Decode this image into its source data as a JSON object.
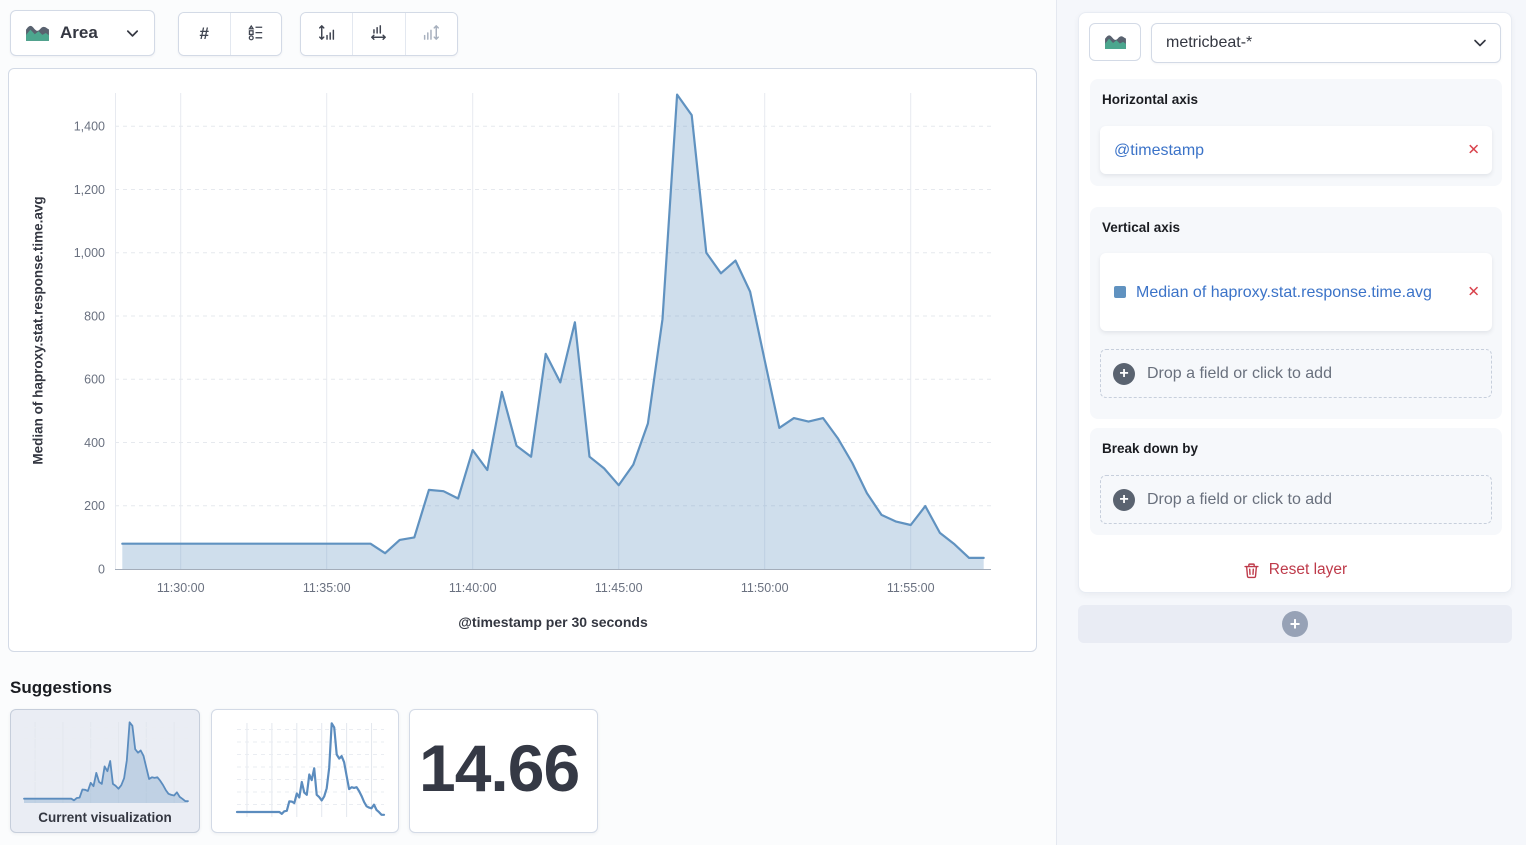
{
  "toolbar": {
    "chart_type_label": "Area",
    "value_labels_label": "#",
    "icons": [
      "area-chart-icon",
      "hash-icon",
      "legend-icon",
      "axis-left-icon",
      "axis-bottom-icon",
      "axis-right-icon"
    ]
  },
  "chart_data": {
    "type": "area",
    "xlabel": "@timestamp per 30 seconds",
    "ylabel": "Median of haproxy.stat.response.time.avg",
    "series_name": "Median of haproxy.stat.response.time.avg",
    "series_color": "#6092C0",
    "fill_color": "rgba(96,146,192,0.30)",
    "grid": true,
    "legend": "off",
    "ylim": [
      0,
      1505
    ],
    "y_ticks": [
      0,
      200,
      400,
      600,
      800,
      1000,
      1200,
      1400
    ],
    "y_tick_labels": [
      "0",
      "200",
      "400",
      "600",
      "800",
      "1,000",
      "1,200",
      "1,400"
    ],
    "x_tick_labels": [
      "11:30:00",
      "11:35:00",
      "11:40:00",
      "11:45:00",
      "11:50:00",
      "11:55:00"
    ],
    "x_tick_index": [
      4,
      14,
      24,
      34,
      44,
      54
    ],
    "x": [
      "11:28:00",
      "11:28:30",
      "11:29:00",
      "11:29:30",
      "11:30:00",
      "11:30:30",
      "11:31:00",
      "11:31:30",
      "11:32:00",
      "11:32:30",
      "11:33:00",
      "11:33:30",
      "11:34:00",
      "11:34:30",
      "11:35:00",
      "11:35:30",
      "11:36:00",
      "11:36:30",
      "11:37:00",
      "11:37:30",
      "11:38:00",
      "11:38:30",
      "11:39:00",
      "11:39:30",
      "11:40:00",
      "11:40:30",
      "11:41:00",
      "11:41:30",
      "11:42:00",
      "11:42:30",
      "11:43:00",
      "11:43:30",
      "11:44:00",
      "11:44:30",
      "11:45:00",
      "11:45:30",
      "11:46:00",
      "11:46:30",
      "11:47:00",
      "11:47:30",
      "11:48:00",
      "11:48:30",
      "11:49:00",
      "11:49:30",
      "11:50:00",
      "11:50:30",
      "11:51:00",
      "11:51:30",
      "11:52:00",
      "11:52:30",
      "11:53:00",
      "11:53:30",
      "11:54:00",
      "11:54:30",
      "11:55:00",
      "11:55:30",
      "11:56:00",
      "11:56:30",
      "11:57:00",
      "11:57:30"
    ],
    "values": [
      80,
      80,
      80,
      80,
      80,
      80,
      80,
      80,
      80,
      80,
      80,
      80,
      80,
      80,
      80,
      80,
      80,
      80,
      50,
      92,
      100,
      250,
      246,
      223,
      376,
      313,
      560,
      390,
      355,
      680,
      590,
      780,
      355,
      318,
      265,
      330,
      460,
      790,
      1500,
      1435,
      1000,
      935,
      975,
      877,
      660,
      446,
      477,
      466,
      477,
      414,
      335,
      240,
      171,
      150,
      139,
      199,
      114,
      78,
      35,
      35
    ]
  },
  "suggestions": {
    "heading": "Suggestions",
    "current_label": "Current visualization",
    "metric_value": "14.66",
    "cards": [
      {
        "type": "area",
        "label": "Current visualization",
        "selected": true
      },
      {
        "type": "line",
        "selected": false
      },
      {
        "type": "metric",
        "value": "14.66",
        "selected": false
      }
    ]
  },
  "sidebar": {
    "index_pattern": "metricbeat-*",
    "horizontal": {
      "title": "Horizontal axis",
      "field": "@timestamp"
    },
    "vertical": {
      "title": "Vertical axis",
      "field": "Median of haproxy.stat.response.time.avg",
      "swatch_color": "#6092C0",
      "drop_label": "Drop a field or click to add"
    },
    "breakdown": {
      "title": "Break down by",
      "drop_label": "Drop a field or click to add"
    },
    "reset_label": "Reset layer",
    "remove_symbol": "✕",
    "add_symbol": "+"
  },
  "colors": {
    "accent_blue": "#3B73C8",
    "series_blue": "#6092C0",
    "danger": "#BE3A4A",
    "danger_light": "#D9444E",
    "icon_green": "#4CA68E",
    "icon_gray": "#59626F",
    "border": "#D3DAE6",
    "text_dark": "#343741",
    "text_subdued": "#69707D"
  }
}
